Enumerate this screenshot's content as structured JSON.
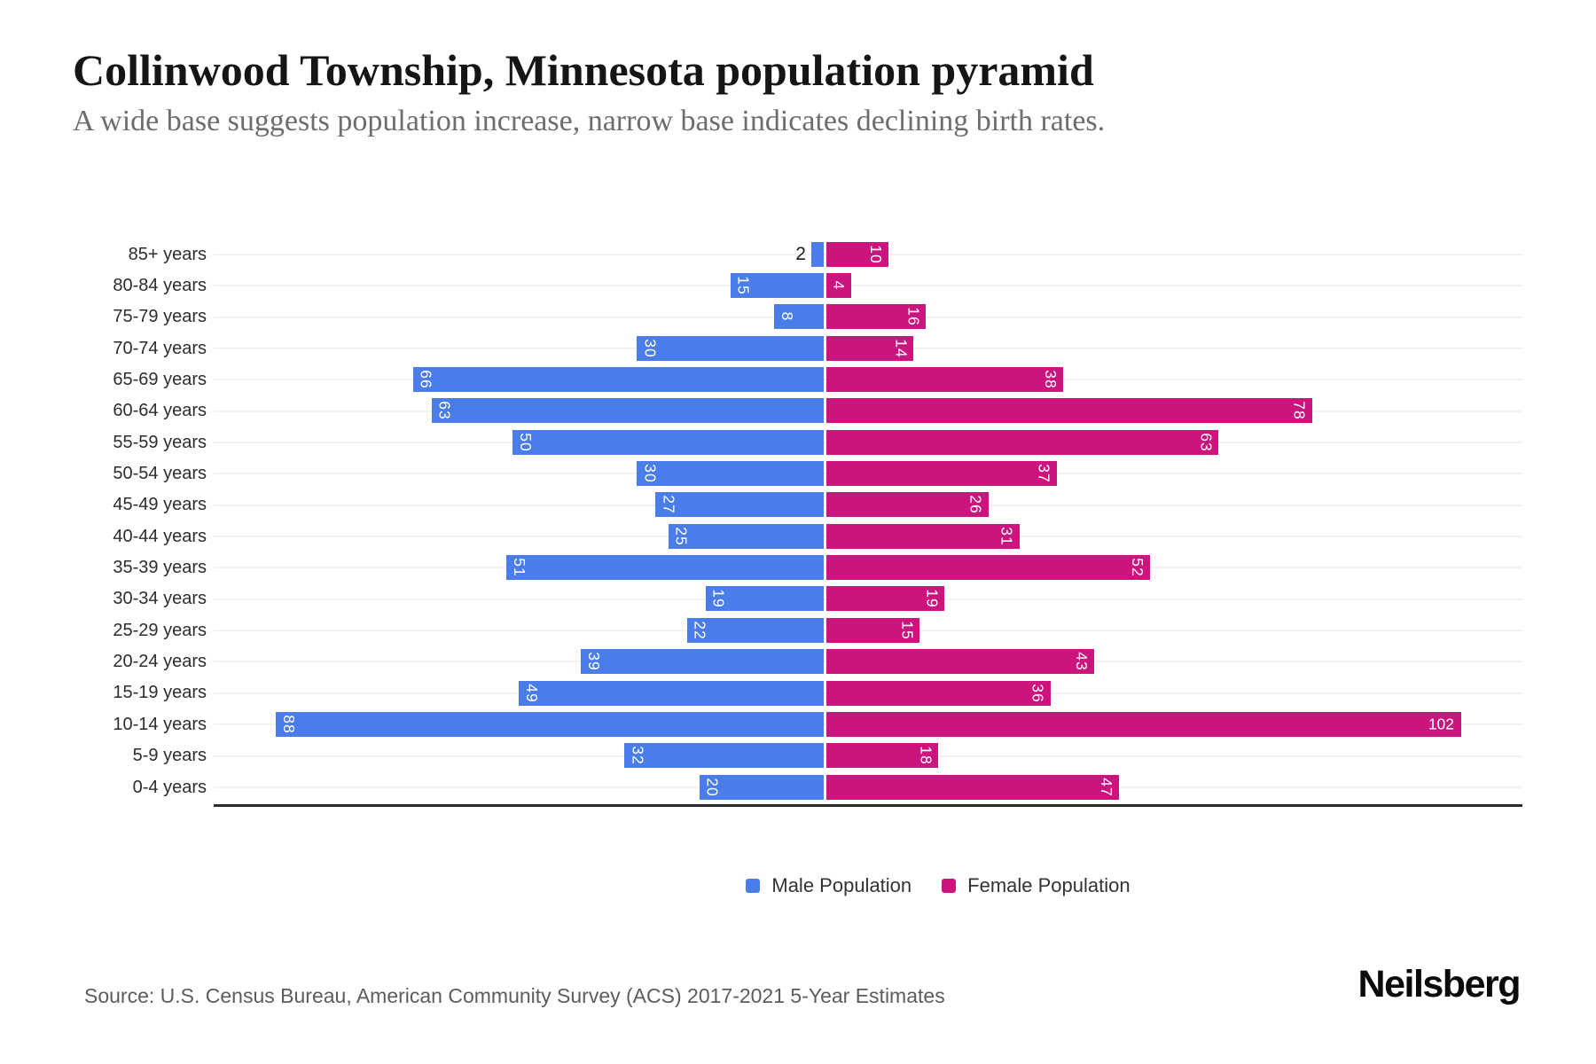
{
  "header": {
    "title": "Collinwood Township, Minnesota population pyramid",
    "subtitle": "A wide base suggests population increase, narrow base indicates declining birth rates."
  },
  "chart_data": {
    "type": "bar",
    "variant": "population-pyramid",
    "title": "Collinwood Township, Minnesota population pyramid",
    "categories": [
      "85+ years",
      "80-84 years",
      "75-79 years",
      "70-74 years",
      "65-69 years",
      "60-64 years",
      "55-59 years",
      "50-54 years",
      "45-49 years",
      "40-44 years",
      "35-39 years",
      "30-34 years",
      "25-29 years",
      "20-24 years",
      "15-19 years",
      "10-14 years",
      "5-9 years",
      "0-4 years"
    ],
    "series": [
      {
        "name": "Male Population",
        "side": "left",
        "color": "#4a7de9",
        "values": [
          2,
          15,
          8,
          30,
          66,
          63,
          50,
          30,
          27,
          25,
          51,
          19,
          22,
          39,
          49,
          88,
          32,
          20
        ]
      },
      {
        "name": "Female Population",
        "side": "right",
        "color": "#cc147f",
        "values": [
          10,
          4,
          16,
          14,
          38,
          78,
          63,
          37,
          26,
          31,
          52,
          19,
          15,
          43,
          36,
          102,
          18,
          47
        ]
      }
    ],
    "value_labels": "shown on bars, rotated 90deg, white; small bars labeled outside in black",
    "legend_position": "bottom-center",
    "grid": "light horizontal line per category row",
    "axis_baseline": "solid dark line under 0-4 years row"
  },
  "legend": {
    "male_label": "Male Population",
    "female_label": "Female Population"
  },
  "footer": {
    "source": "Source: U.S. Census Bureau, American Community Survey (ACS) 2017-2021 5-Year Estimates",
    "logo": "Neilsberg"
  },
  "colors": {
    "male": "#4a7de9",
    "female": "#cc147f",
    "title": "#151515",
    "subtitle": "#6d6d6d",
    "gridline": "#f2f2f2",
    "axis": "#2a2a2a"
  }
}
